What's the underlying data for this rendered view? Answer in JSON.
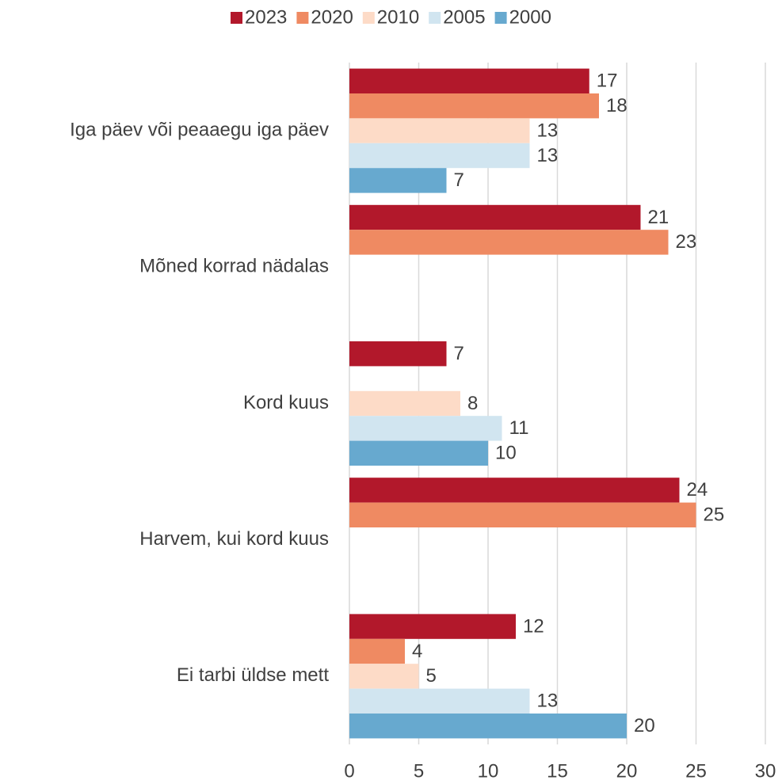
{
  "chart_data": {
    "type": "bar",
    "orientation": "horizontal",
    "categories": [
      "Iga päev või peaaegu iga päev",
      "Mõned korrad nädalas",
      "Kord kuus",
      "Harvem, kui kord kuus",
      "Ei tarbi üldse mett"
    ],
    "series": [
      {
        "name": "2023",
        "color": "#b2182b",
        "values": [
          17.3,
          21,
          7,
          23.8,
          12
        ],
        "value_labels": [
          "17",
          "21",
          "7",
          "24",
          "12"
        ]
      },
      {
        "name": "2020",
        "color": "#ef8a62",
        "values": [
          18,
          23,
          null,
          25,
          4
        ],
        "value_labels": [
          "18",
          "23",
          null,
          "25",
          "4"
        ]
      },
      {
        "name": "2010",
        "color": "#fddbc7",
        "values": [
          13,
          null,
          8,
          null,
          5
        ],
        "value_labels": [
          "13",
          null,
          "8",
          null,
          "5"
        ]
      },
      {
        "name": "2005",
        "color": "#d1e5f0",
        "values": [
          13,
          null,
          11,
          null,
          13
        ],
        "value_labels": [
          "13",
          null,
          "11",
          null,
          "13"
        ]
      },
      {
        "name": "2000",
        "color": "#67a9cf",
        "values": [
          7,
          null,
          10,
          null,
          20
        ],
        "value_labels": [
          "7",
          null,
          "10",
          null,
          "20"
        ]
      }
    ],
    "xlim": [
      0,
      30
    ],
    "xticks": [
      0,
      5,
      10,
      15,
      20,
      25,
      30
    ],
    "grid": true,
    "legend": "top"
  }
}
